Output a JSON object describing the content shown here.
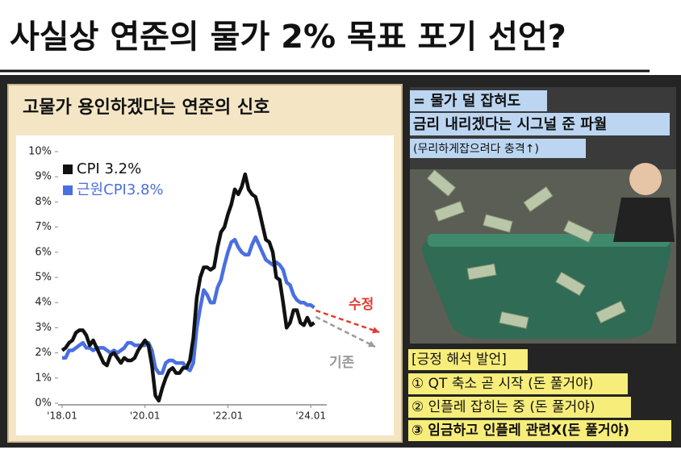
{
  "title": "사실상 연준의 물가 2% 목표 포기 선언?",
  "panel_title": "고물가 용인하겠다는 연준의 신호",
  "chart_data": {
    "type": "line",
    "categories": [
      "'18.01",
      null,
      null,
      null,
      null,
      null,
      null,
      null,
      null,
      null,
      null,
      null,
      null,
      null,
      null,
      null,
      null,
      null,
      null,
      null,
      null,
      null,
      null,
      null,
      "'20.01",
      null,
      null,
      null,
      null,
      null,
      null,
      null,
      null,
      null,
      null,
      null,
      null,
      null,
      null,
      null,
      null,
      null,
      null,
      null,
      null,
      null,
      null,
      null,
      "'22.01",
      null,
      null,
      null,
      null,
      null,
      null,
      null,
      null,
      null,
      null,
      null,
      null,
      null,
      null,
      null,
      null,
      null,
      null,
      null,
      null,
      null,
      null,
      null,
      "'24.01",
      null
    ],
    "series": [
      {
        "name": "CPI 3.2%",
        "color": "#111111",
        "values": [
          2.1,
          2.2,
          2.4,
          2.5,
          2.8,
          2.9,
          2.9,
          2.7,
          2.3,
          2.5,
          2.2,
          1.9,
          1.6,
          1.5,
          1.9,
          2.0,
          1.8,
          1.6,
          1.8,
          1.7,
          1.7,
          1.8,
          2.1,
          2.3,
          2.5,
          2.3,
          1.5,
          0.3,
          0.1,
          0.6,
          1.0,
          1.3,
          1.4,
          1.2,
          1.2,
          1.4,
          1.4,
          1.7,
          2.6,
          4.2,
          5.0,
          5.4,
          5.4,
          5.3,
          5.4,
          6.2,
          6.8,
          7.0,
          7.5,
          7.9,
          8.5,
          8.3,
          8.6,
          9.1,
          8.5,
          8.3,
          8.2,
          7.7,
          7.1,
          6.5,
          6.4,
          6.0,
          5.0,
          4.9,
          4.0,
          3.0,
          3.2,
          3.7,
          3.7,
          3.2,
          3.1,
          3.4,
          3.1,
          3.2
        ]
      },
      {
        "name": "근원CPI3.8%",
        "color": "#4a6fe0",
        "values": [
          1.8,
          1.8,
          2.1,
          2.1,
          2.2,
          2.3,
          2.4,
          2.2,
          2.2,
          2.1,
          2.2,
          2.2,
          2.2,
          2.1,
          2.0,
          2.1,
          2.0,
          2.1,
          2.2,
          2.4,
          2.4,
          2.3,
          2.3,
          2.3,
          2.3,
          2.4,
          2.1,
          1.4,
          1.2,
          1.2,
          1.6,
          1.7,
          1.7,
          1.6,
          1.6,
          1.6,
          1.4,
          1.3,
          1.6,
          3.0,
          3.8,
          4.5,
          4.3,
          4.0,
          4.0,
          4.6,
          4.9,
          5.5,
          6.0,
          6.4,
          6.5,
          6.2,
          6.0,
          5.9,
          5.9,
          6.3,
          6.6,
          6.3,
          6.0,
          5.7,
          5.6,
          5.5,
          5.6,
          5.5,
          5.3,
          4.8,
          4.7,
          4.3,
          4.1,
          4.0,
          4.0,
          3.9,
          3.9,
          3.8
        ]
      }
    ],
    "ylim": [
      0,
      10
    ],
    "yticks": [
      {
        "value": 0,
        "label": "0%"
      },
      {
        "value": 1,
        "label": "1%"
      },
      {
        "value": 2,
        "label": "2%"
      },
      {
        "value": 3,
        "label": "3%"
      },
      {
        "value": 4,
        "label": "4%"
      },
      {
        "value": 5,
        "label": "5%"
      },
      {
        "value": 6,
        "label": "6%"
      },
      {
        "value": 7,
        "label": "7%"
      },
      {
        "value": 8,
        "label": "8%"
      },
      {
        "value": 9,
        "label": "9%"
      },
      {
        "value": 10,
        "label": "10%"
      }
    ],
    "grid": false,
    "legend": "top-left",
    "annotations": [
      {
        "text": "수정",
        "color": "#e03c31"
      },
      {
        "text": "기존",
        "color": "#9a9a9a"
      }
    ]
  },
  "callout": {
    "lines": [
      "= 물가 덜 잡혀도",
      "금리 내리겠다는 시그널 준 파월",
      "(무리하게잡으려다 충격↑)"
    ]
  },
  "remarks": {
    "heading": "[긍정 해석 발언]",
    "items": [
      "① QT 축소 곧 시작 (돈 풀거야)",
      "② 인플레 잡히는 중 (돈 풀거야)",
      "③ 임금하고 인플레 관련X(돈 풀거야)"
    ]
  }
}
